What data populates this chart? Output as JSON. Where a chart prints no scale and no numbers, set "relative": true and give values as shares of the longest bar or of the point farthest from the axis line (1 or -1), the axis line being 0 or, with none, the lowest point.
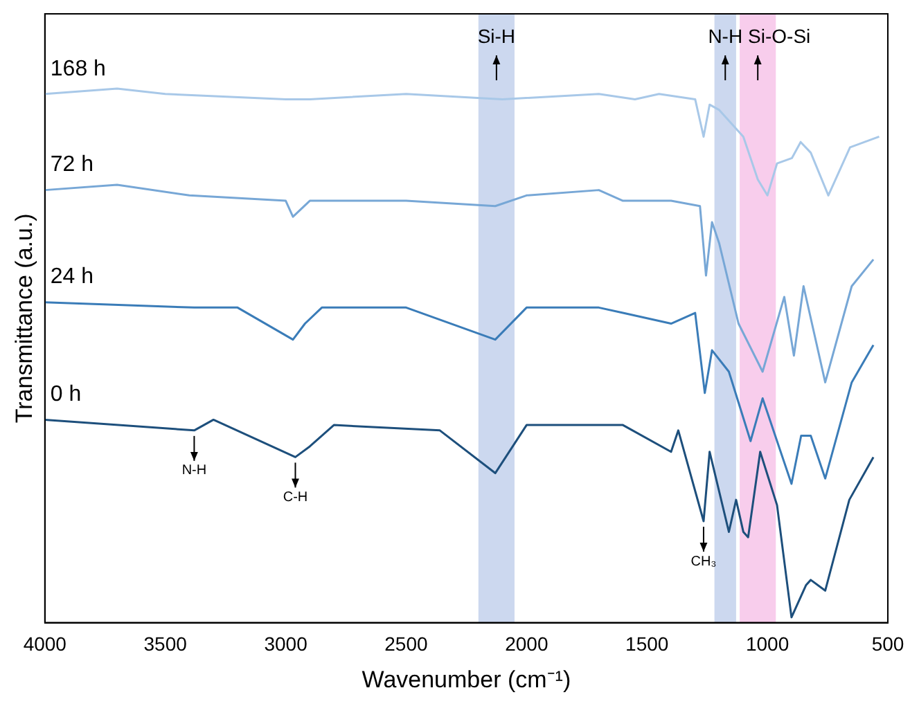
{
  "chart_data": {
    "type": "line",
    "xlabel": "Wavenumber (cm⁻¹)",
    "ylabel": "Transmittance (a.u.)",
    "relative": true,
    "xlim": [
      4000,
      500
    ],
    "xticks": [
      4000,
      3500,
      3000,
      2500,
      2000,
      1500,
      1000,
      500
    ],
    "grid": false,
    "legend": false,
    "marker": "none",
    "line_style": "solid",
    "series": [
      {
        "name": "168 h",
        "color": "#a8c8e8",
        "x": [
          4000,
          3700,
          3500,
          3000,
          2960,
          2900,
          2500,
          2100,
          1700,
          1550,
          1450,
          1300,
          1265,
          1240,
          1200,
          1100,
          1040,
          1000,
          960,
          898,
          862,
          820,
          747,
          657,
          536
        ],
        "values": [
          0.99,
          1.0,
          0.99,
          0.98,
          0.98,
          0.98,
          0.99,
          0.98,
          0.99,
          0.98,
          0.99,
          0.98,
          0.91,
          0.97,
          0.96,
          0.91,
          0.83,
          0.8,
          0.86,
          0.87,
          0.9,
          0.88,
          0.8,
          0.89,
          0.91
        ]
      },
      {
        "name": "72 h",
        "color": "#77a7d6",
        "x": [
          4000,
          3700,
          3400,
          3000,
          2970,
          2900,
          2500,
          2130,
          2000,
          1700,
          1600,
          1400,
          1280,
          1255,
          1230,
          1200,
          1120,
          1020,
          930,
          890,
          850,
          760,
          650,
          560
        ],
        "values": [
          0.81,
          0.82,
          0.8,
          0.79,
          0.76,
          0.79,
          0.79,
          0.78,
          0.8,
          0.81,
          0.79,
          0.79,
          0.78,
          0.65,
          0.75,
          0.71,
          0.56,
          0.47,
          0.61,
          0.5,
          0.63,
          0.45,
          0.63,
          0.68
        ]
      },
      {
        "name": "24 h",
        "color": "#3a7cb8",
        "x": [
          4000,
          3380,
          3200,
          2970,
          2920,
          2850,
          2500,
          2130,
          2000,
          1700,
          1600,
          1400,
          1300,
          1260,
          1230,
          1160,
          1070,
          1020,
          900,
          860,
          820,
          760,
          650,
          560
        ],
        "values": [
          0.6,
          0.59,
          0.59,
          0.53,
          0.56,
          0.59,
          0.59,
          0.53,
          0.59,
          0.59,
          0.58,
          0.56,
          0.58,
          0.43,
          0.51,
          0.47,
          0.34,
          0.42,
          0.26,
          0.35,
          0.35,
          0.27,
          0.45,
          0.52
        ]
      },
      {
        "name": "0 h",
        "color": "#1d4f7c",
        "x": [
          4000,
          3380,
          3300,
          2960,
          2900,
          2800,
          2360,
          2130,
          2000,
          1600,
          1400,
          1370,
          1265,
          1240,
          1160,
          1130,
          1100,
          1080,
          1030,
          960,
          900,
          840,
          820,
          760,
          660,
          560
        ],
        "values": [
          0.38,
          0.36,
          0.38,
          0.31,
          0.33,
          0.37,
          0.36,
          0.28,
          0.37,
          0.37,
          0.32,
          0.36,
          0.19,
          0.32,
          0.17,
          0.23,
          0.17,
          0.16,
          0.32,
          0.22,
          0.01,
          0.07,
          0.08,
          0.06,
          0.23,
          0.31
        ]
      }
    ],
    "bands": [
      {
        "axis": "x",
        "from": 2200,
        "to": 2050,
        "label": "Si-H",
        "color": "#ccd8ef"
      },
      {
        "axis": "x",
        "from": 1220,
        "to": 1130,
        "label": "N-H",
        "color": "#ccd8ef"
      },
      {
        "axis": "x",
        "from": 1115,
        "to": 965,
        "label": "Si-O-Si",
        "color": "#f8cdec"
      }
    ],
    "annotations": [
      {
        "text": "N-H",
        "x": 3380,
        "y": 0.36
      },
      {
        "text": "C-H",
        "x": 2960,
        "y": 0.31
      },
      {
        "text": "CH₃",
        "x": 1265,
        "y": 0.19
      }
    ]
  }
}
